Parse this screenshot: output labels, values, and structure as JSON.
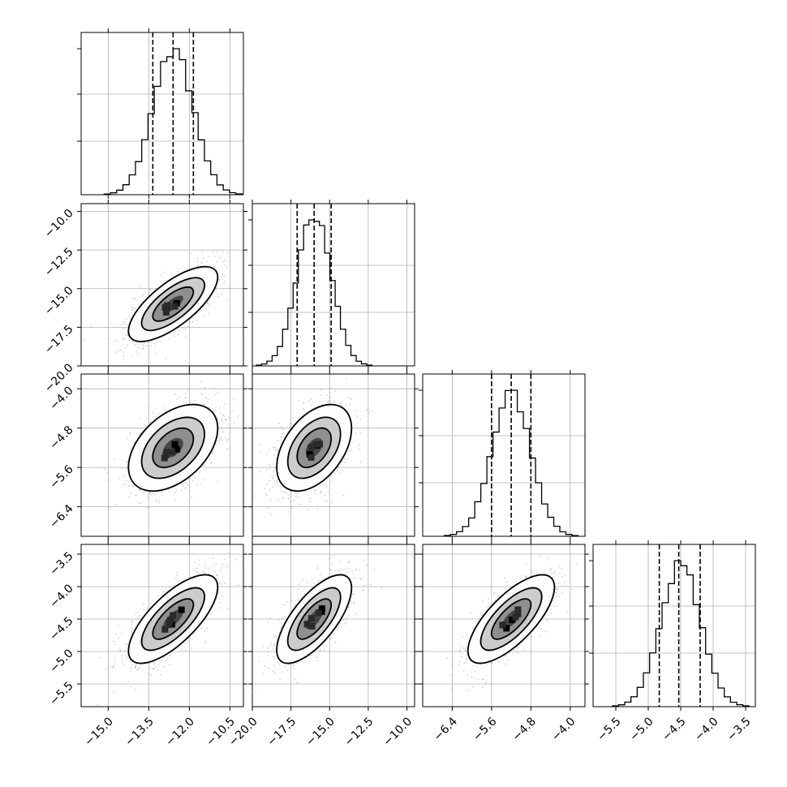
{
  "chart_data": {
    "type": "corner",
    "parameters": 4,
    "grid": true,
    "quantile_lines": "dashed",
    "axes": [
      {
        "index": 0,
        "range": [
          -16.0,
          -10.0
        ],
        "ticks": [
          -15.0,
          -13.5,
          -12.0,
          -10.5
        ],
        "tick_labels": [
          "−15.0",
          "−13.5",
          "−12.0",
          "−10.5"
        ],
        "quantiles": [
          -13.35,
          -12.6,
          -11.85
        ],
        "mean": -12.6,
        "sd": 0.75
      },
      {
        "index": 1,
        "range": [
          -20.0,
          -9.5
        ],
        "ticks": [
          -20.0,
          -17.5,
          -15.0,
          -12.5,
          -10.0
        ],
        "tick_labels": [
          "−20.0",
          "−17.5",
          "−15.0",
          "−12.5",
          "−10.0"
        ],
        "quantiles": [
          -17.1,
          -16.0,
          -14.9
        ],
        "mean": -16.0,
        "sd": 1.1
      },
      {
        "index": 2,
        "range": [
          -7.0,
          -3.7
        ],
        "ticks": [
          -6.4,
          -5.6,
          -4.8,
          -4.0
        ],
        "tick_labels": [
          "−6.4",
          "−5.6",
          "−4.8",
          "−4.0"
        ],
        "quantiles": [
          -5.6,
          -5.2,
          -4.8
        ],
        "mean": -5.2,
        "sd": 0.4
      },
      {
        "index": 3,
        "range": [
          -5.85,
          -3.35
        ],
        "ticks": [
          -5.5,
          -5.0,
          -4.5,
          -4.0,
          -3.5
        ],
        "tick_labels": [
          "−5.5",
          "−5.0",
          "−4.5",
          "−4.0",
          "−3.5"
        ],
        "quantiles": [
          -4.83,
          -4.53,
          -4.2
        ],
        "mean": -4.5,
        "sd": 0.31
      }
    ],
    "correlations": {
      "1-0": 0.72,
      "2-0": 0.45,
      "2-1": 0.45,
      "3-0": 0.72,
      "3-1": 0.7,
      "3-2": 0.72
    },
    "colors": {
      "contour": "#000000",
      "points": "#999999",
      "grid": "#b0b0b0",
      "hist": "#000000"
    }
  }
}
